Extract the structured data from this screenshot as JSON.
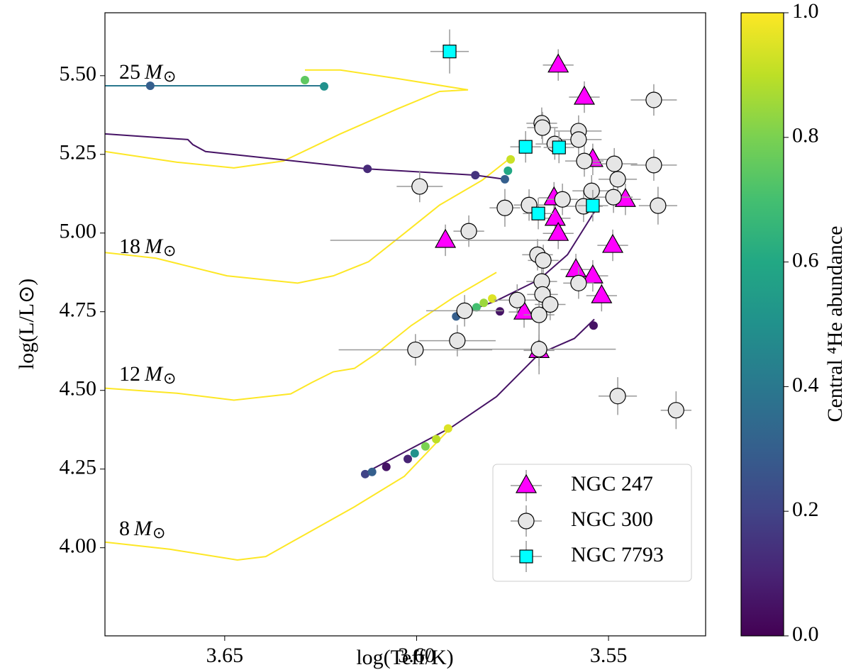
{
  "chart_data": {
    "type": "scatter",
    "xlabel": "log(Teff/K)",
    "ylabel": "log(L/L⊙)",
    "xlim": [
      3.6812,
      3.5247
    ],
    "ylim": [
      3.72,
      5.7
    ],
    "xticks": [
      {
        "value": 3.65,
        "label": "3.65"
      },
      {
        "value": 3.6,
        "label": "3.60"
      },
      {
        "value": 3.55,
        "label": "3.55"
      }
    ],
    "yticks": [
      {
        "value": 4.0,
        "label": "4.00"
      },
      {
        "value": 4.25,
        "label": "4.25"
      },
      {
        "value": 4.5,
        "label": "4.50"
      },
      {
        "value": 4.75,
        "label": "4.75"
      },
      {
        "value": 5.0,
        "label": "5.00"
      },
      {
        "value": 5.25,
        "label": "5.25"
      },
      {
        "value": 5.5,
        "label": "5.50"
      }
    ],
    "legend": "lower right",
    "errorbar_color": "#999999",
    "series": [
      {
        "name": "NGC 247",
        "marker": "triangle",
        "color": "#ff00ff",
        "x": [
          3.5631,
          3.5563,
          3.5541,
          3.5456,
          3.5642,
          3.5639,
          3.5631,
          3.5925,
          3.5489,
          3.5585,
          3.5541,
          3.5518,
          3.572,
          3.5681
        ],
        "values": [
          5.534,
          5.432,
          5.234,
          5.107,
          5.112,
          5.047,
          4.999,
          4.977,
          4.961,
          4.884,
          4.864,
          4.801,
          4.749,
          4.627
        ],
        "xerr": [
          0.004,
          0.004,
          0.004,
          0.004,
          0.004,
          0.004,
          0.004,
          0.03,
          0.004,
          0.004,
          0.004,
          0.004,
          0.004,
          0.004
        ],
        "yerr": [
          0.05,
          0.05,
          0.05,
          0.05,
          0.05,
          0.05,
          0.05,
          0.05,
          0.05,
          0.05,
          0.05,
          0.05,
          0.05,
          0.05
        ]
      },
      {
        "name": "NGC 300",
        "marker": "circle",
        "color": "#e6e6e6",
        "x": [
          3.5382,
          3.5674,
          3.5672,
          3.564,
          3.5578,
          3.5578,
          3.5563,
          3.5485,
          3.5382,
          3.5476,
          3.5544,
          3.5487,
          3.562,
          3.5565,
          3.5371,
          3.5707,
          3.577,
          3.5864,
          3.5992,
          3.5685,
          3.567,
          3.5674,
          3.5672,
          3.5578,
          3.5652,
          3.5681,
          3.5738,
          3.5875,
          3.5894,
          3.6003,
          3.5681,
          3.5476,
          3.5324
        ],
        "values": [
          5.423,
          5.349,
          5.335,
          5.283,
          5.324,
          5.297,
          5.229,
          5.22,
          5.216,
          5.171,
          5.134,
          5.114,
          5.107,
          5.085,
          5.087,
          5.089,
          5.08,
          5.006,
          5.148,
          4.931,
          4.913,
          4.846,
          4.805,
          4.841,
          4.773,
          4.74,
          4.787,
          4.753,
          4.658,
          4.629,
          4.631,
          4.482,
          4.437
        ],
        "xerr": [
          0.006,
          0.004,
          0.004,
          0.005,
          0.006,
          0.006,
          0.005,
          0.006,
          0.006,
          0.005,
          0.005,
          0.005,
          0.004,
          0.005,
          0.005,
          0.004,
          0.004,
          0.004,
          0.006,
          0.004,
          0.004,
          0.004,
          0.004,
          0.004,
          0.004,
          0.004,
          0.006,
          0.01,
          0.01,
          0.02,
          0.02,
          0.005,
          0.004
        ],
        "yerr": [
          0.05,
          0.05,
          0.05,
          0.05,
          0.05,
          0.05,
          0.05,
          0.05,
          0.05,
          0.05,
          0.05,
          0.05,
          0.05,
          0.05,
          0.06,
          0.05,
          0.06,
          0.05,
          0.05,
          0.05,
          0.05,
          0.05,
          0.06,
          0.05,
          0.05,
          0.08,
          0.05,
          0.05,
          0.05,
          0.05,
          0.08,
          0.06,
          0.06
        ]
      },
      {
        "name": "NGC 7793",
        "marker": "square",
        "color": "#00ffff",
        "x": [
          3.5914,
          3.5716,
          3.5629,
          3.5683,
          3.5541
        ],
        "values": [
          5.577,
          5.274,
          5.272,
          5.062,
          5.087
        ],
        "xerr": [
          0.005,
          0.004,
          0.004,
          0.004,
          0.004
        ],
        "yerr": [
          0.07,
          0.05,
          0.05,
          0.05,
          0.05
        ]
      }
    ],
    "mass_unit": "M",
    "mass_sun": "⊙",
    "tracks": [
      {
        "label": "25",
        "color": "#fde725",
        "x": [
          3.6812,
          3.6624,
          3.6476,
          3.6347,
          3.6199,
          3.6051,
          3.594,
          3.5866,
          3.6051,
          3.6199,
          3.6291
        ],
        "values": [
          5.259,
          5.225,
          5.207,
          5.229,
          5.315,
          5.394,
          5.45,
          5.455,
          5.491,
          5.518,
          5.518
        ]
      },
      {
        "label": "18",
        "color": "#fde725",
        "x": [
          3.6812,
          3.6679,
          3.6494,
          3.631,
          3.6217,
          3.6125,
          3.6032,
          3.594,
          3.5829,
          3.5751
        ],
        "values": [
          4.938,
          4.92,
          4.864,
          4.841,
          4.864,
          4.909,
          4.999,
          5.089,
          5.168,
          5.243
        ]
      },
      {
        "label": "12",
        "color": "#fde725",
        "x": [
          3.6812,
          3.6624,
          3.6476,
          3.6328,
          3.6273,
          3.6217,
          3.6162,
          3.6106,
          3.6014,
          3.5903,
          3.5792
        ],
        "values": [
          4.507,
          4.491,
          4.469,
          4.489,
          4.525,
          4.559,
          4.57,
          4.616,
          4.706,
          4.796,
          4.875
        ]
      },
      {
        "label": "8",
        "color": "#fde725",
        "x": [
          3.6812,
          3.6642,
          3.6467,
          3.6393,
          3.631,
          3.6162,
          3.6032,
          3.5931,
          3.5909
        ],
        "values": [
          4.018,
          3.995,
          3.961,
          3.972,
          4.029,
          4.13,
          4.227,
          4.356,
          4.383
        ]
      }
    ],
    "he_tracks": [
      {
        "c": 0.4,
        "x": [
          3.6812,
          3.6241
        ],
        "values": [
          5.468,
          5.468
        ]
      },
      {
        "c": 0.05,
        "x": [
          3.6812,
          3.6596,
          3.6583,
          3.655,
          3.6128,
          3.5847,
          3.577
        ],
        "values": [
          5.315,
          5.297,
          5.281,
          5.259,
          5.204,
          5.184,
          5.171
        ]
      },
      {
        "c": 0.05,
        "x": [
          3.5903,
          3.5792,
          3.5681,
          3.5607,
          3.5537
        ],
        "values": [
          4.735,
          4.785,
          4.852,
          4.931,
          5.067
        ]
      },
      {
        "c": 0.05,
        "x": [
          3.614,
          3.5909,
          3.5792,
          3.5681,
          3.5589,
          3.5537
        ],
        "values": [
          4.234,
          4.383,
          4.48,
          4.616,
          4.665,
          4.726
        ]
      }
    ],
    "he_points": {
      "x": [
        3.6694,
        3.6241,
        3.6291,
        3.6128,
        3.5847,
        3.577,
        3.5762,
        3.5755,
        3.5897,
        3.5866,
        3.5844,
        3.5825,
        3.5803,
        3.5783,
        3.5539,
        3.6134,
        3.6116,
        3.6079,
        3.6023,
        3.6005,
        3.5977,
        3.5949,
        3.5918
      ],
      "values": [
        5.468,
        5.466,
        5.486,
        5.204,
        5.184,
        5.171,
        5.198,
        5.234,
        4.735,
        4.751,
        4.764,
        4.778,
        4.792,
        4.751,
        4.706,
        4.234,
        4.241,
        4.257,
        4.282,
        4.3,
        4.322,
        4.345,
        4.379
      ],
      "c": [
        0.3,
        0.5,
        0.75,
        0.12,
        0.15,
        0.3,
        0.6,
        0.92,
        0.3,
        0.5,
        0.7,
        0.85,
        0.95,
        0.05,
        0.05,
        0.2,
        0.3,
        0.05,
        0.1,
        0.5,
        0.8,
        0.9,
        0.95
      ]
    },
    "colorbar": {
      "label": "Central ⁴He abundance",
      "colormap": "viridis",
      "clim": [
        0,
        1
      ],
      "ticks": [
        {
          "value": 0,
          "label": "0.0"
        },
        {
          "value": 0.2,
          "label": "0.2"
        },
        {
          "value": 0.4,
          "label": "0.4"
        },
        {
          "value": 0.6,
          "label": "0.6"
        },
        {
          "value": 0.8,
          "label": "0.8"
        },
        {
          "value": 1,
          "label": "1.0"
        }
      ]
    }
  }
}
